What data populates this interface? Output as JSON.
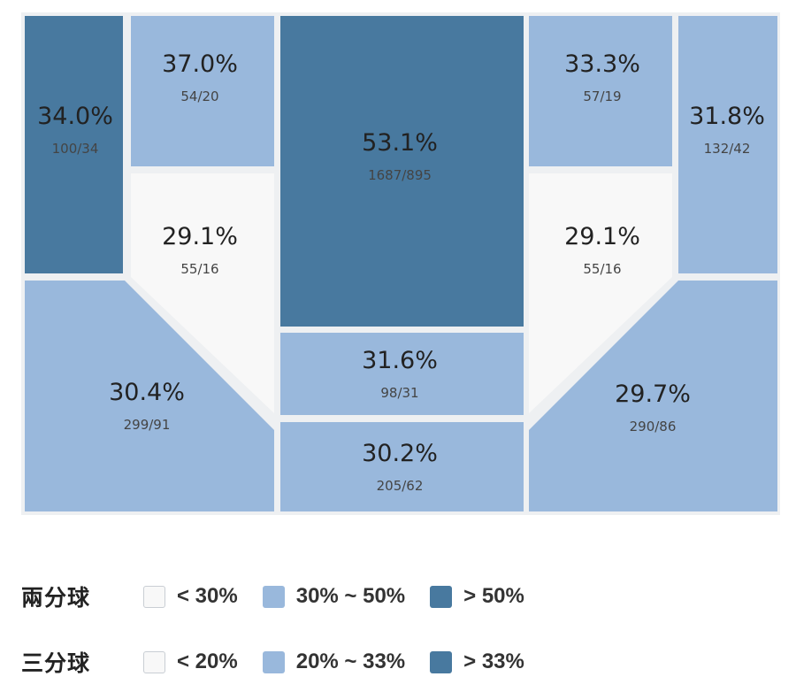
{
  "colors": {
    "low": "#f8f8f8",
    "mid": "#99b8dc",
    "high": "#48799f",
    "border": "#e2e6ea",
    "court_bg": "#eef0f2"
  },
  "chart_data": {
    "type": "heatmap",
    "title": "",
    "zones": [
      {
        "id": "left-corner-three",
        "percent": "34.0%",
        "makes_attempts": "100/34",
        "value": 34.0,
        "bucket": "high"
      },
      {
        "id": "left-short-corner",
        "percent": "37.0%",
        "makes_attempts": "54/20",
        "value": 37.0,
        "bucket": "mid"
      },
      {
        "id": "paint",
        "percent": "53.1%",
        "makes_attempts": "1687/895",
        "value": 53.1,
        "bucket": "high"
      },
      {
        "id": "right-short-corner",
        "percent": "33.3%",
        "makes_attempts": "57/19",
        "value": 33.3,
        "bucket": "mid"
      },
      {
        "id": "right-corner-three",
        "percent": "31.8%",
        "makes_attempts": "132/42",
        "value": 31.8,
        "bucket": "mid"
      },
      {
        "id": "left-elbow",
        "percent": "29.1%",
        "makes_attempts": "55/16",
        "value": 29.1,
        "bucket": "low"
      },
      {
        "id": "right-elbow",
        "percent": "29.1%",
        "makes_attempts": "55/16",
        "value": 29.1,
        "bucket": "low"
      },
      {
        "id": "left-wing-three",
        "percent": "30.4%",
        "makes_attempts": "299/91",
        "value": 30.4,
        "bucket": "mid"
      },
      {
        "id": "free-throw-area",
        "percent": "31.6%",
        "makes_attempts": "98/31",
        "value": 31.6,
        "bucket": "mid"
      },
      {
        "id": "right-wing-three",
        "percent": "29.7%",
        "makes_attempts": "290/86",
        "value": 29.7,
        "bucket": "mid"
      },
      {
        "id": "top-of-key-three",
        "percent": "30.2%",
        "makes_attempts": "205/62",
        "value": 30.2,
        "bucket": "mid"
      }
    ]
  },
  "legend": [
    {
      "title": "兩分球",
      "items": [
        {
          "label": "< 30%",
          "bucket": "low"
        },
        {
          "label": "30% ~ 50%",
          "bucket": "mid"
        },
        {
          "label": "> 50%",
          "bucket": "high"
        }
      ]
    },
    {
      "title": "三分球",
      "items": [
        {
          "label": "< 20%",
          "bucket": "low"
        },
        {
          "label": "20% ~ 33%",
          "bucket": "mid"
        },
        {
          "label": "> 33%",
          "bucket": "high"
        }
      ]
    }
  ]
}
